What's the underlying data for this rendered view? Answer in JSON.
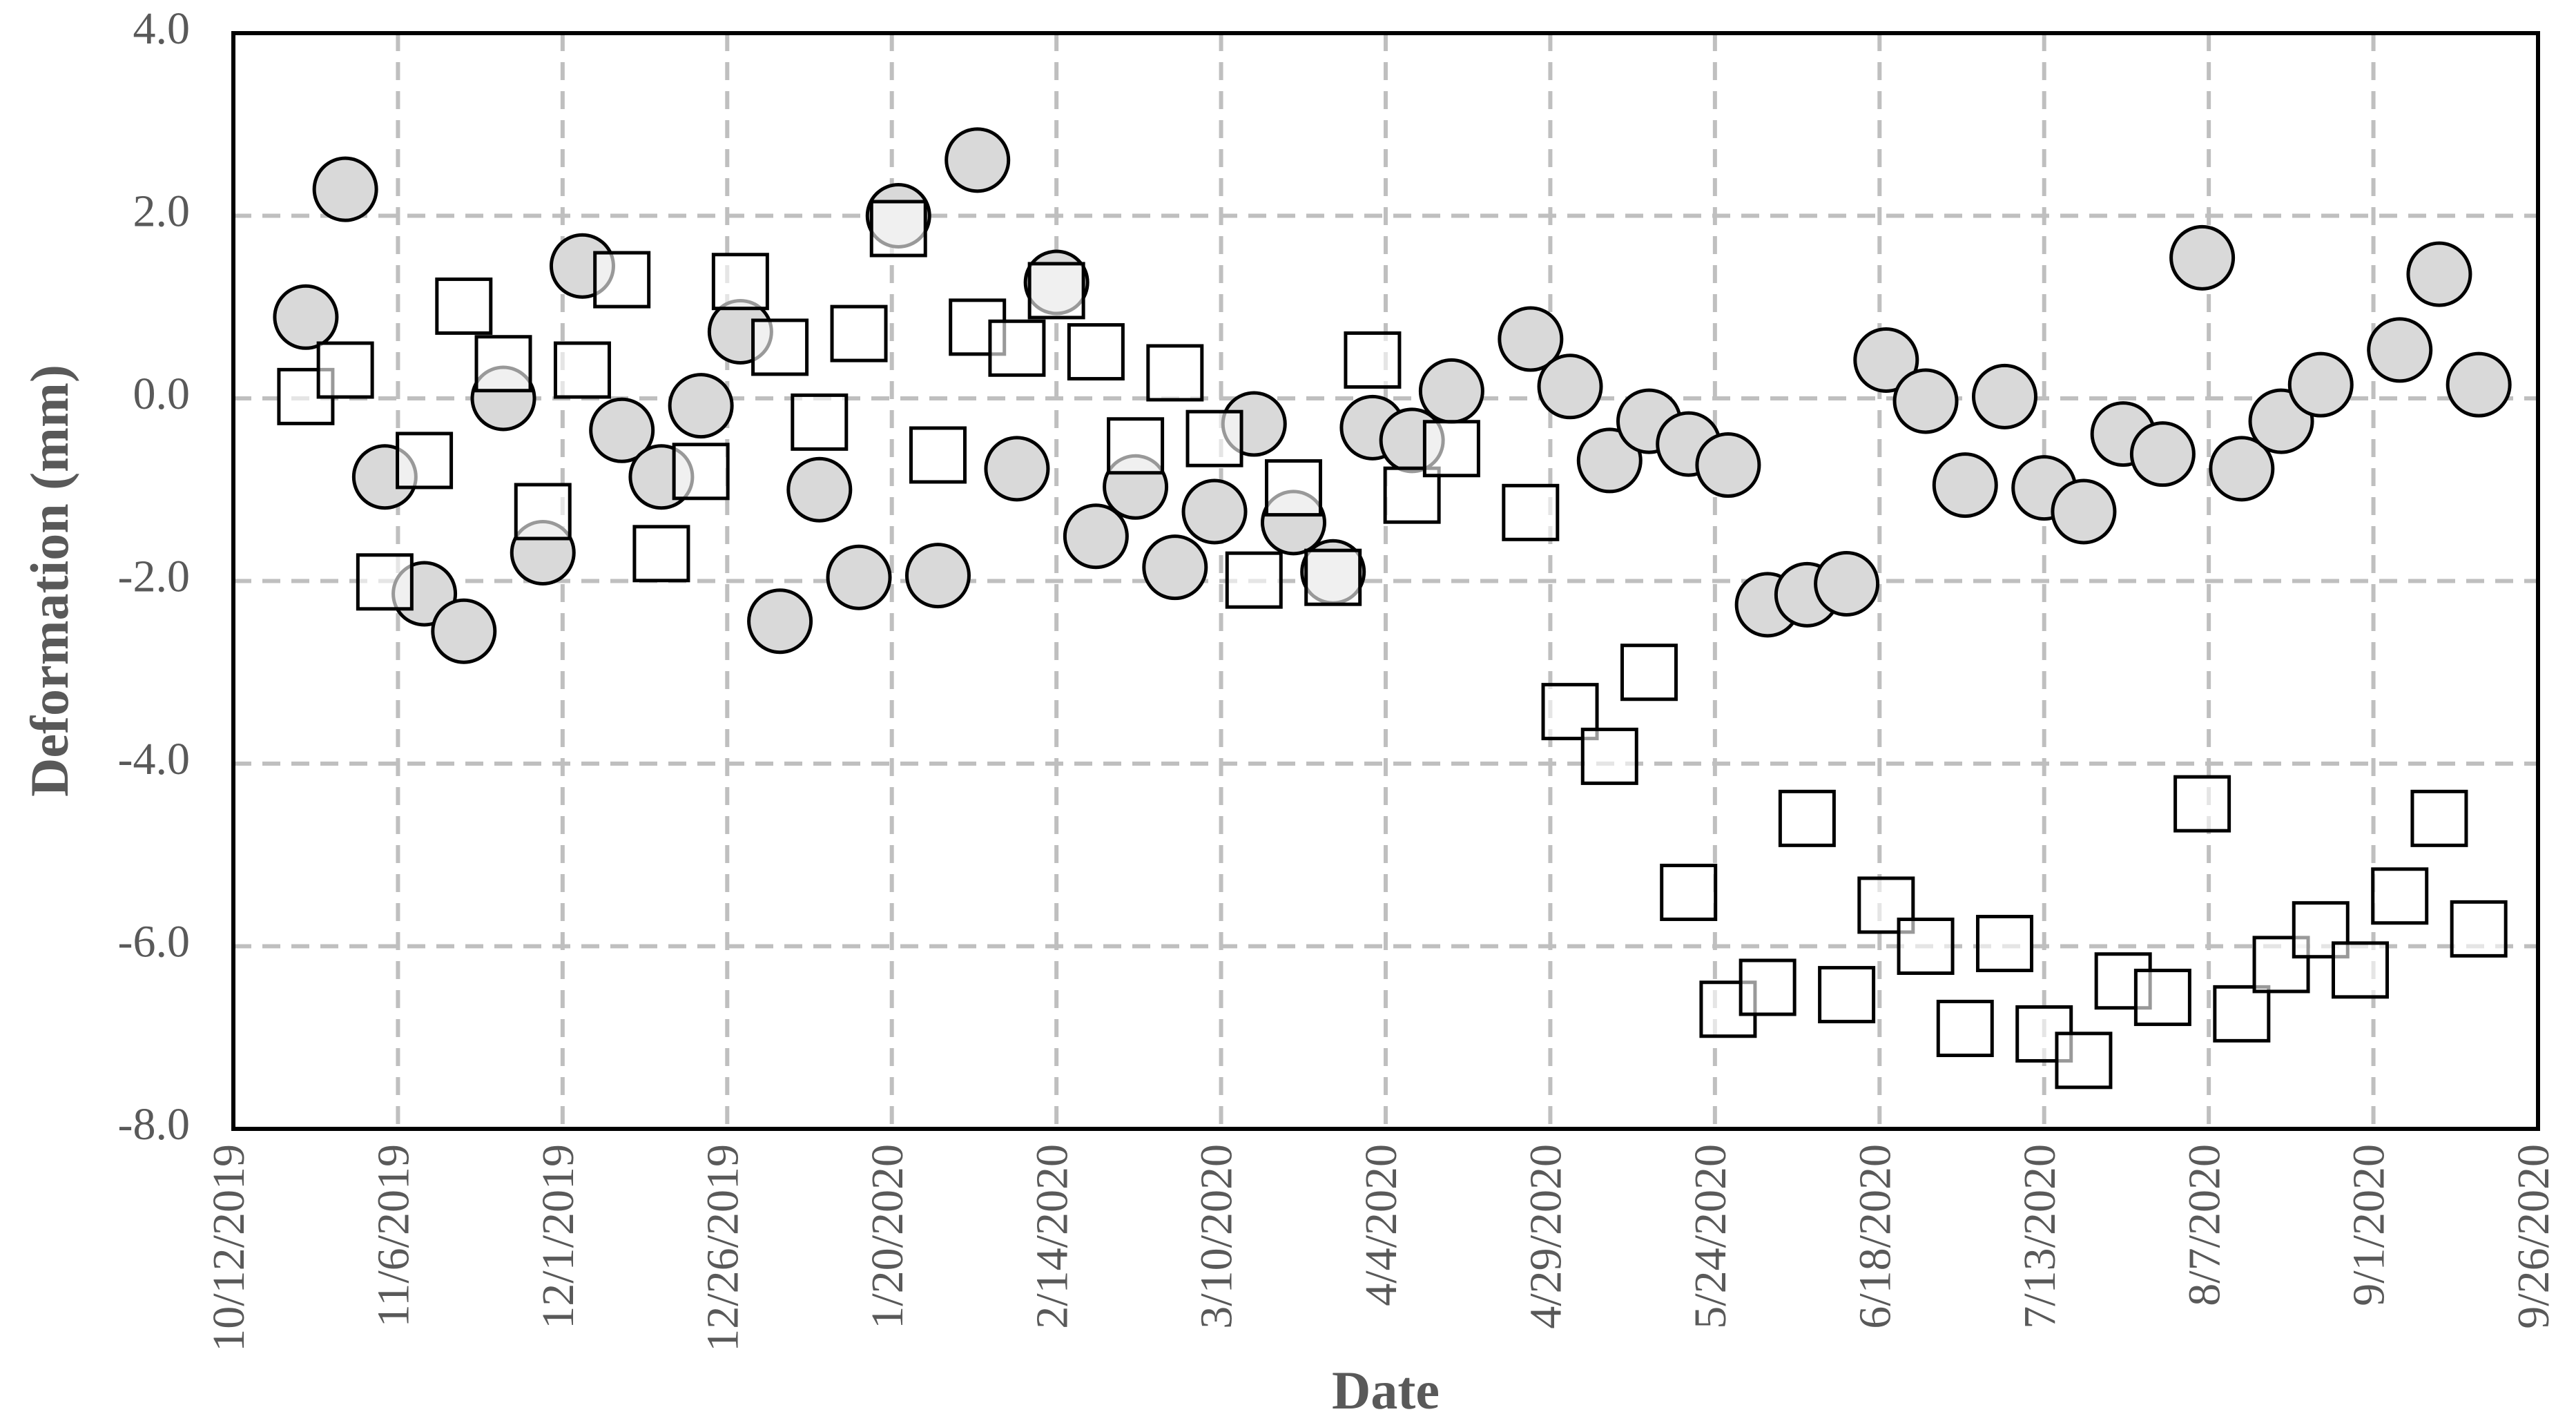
{
  "chart_data": {
    "type": "scatter",
    "x_label": "Date",
    "y_label": "Deformation (mm)",
    "x": [
      "10/23/2019",
      "10/29/2019",
      "11/4/2019",
      "11/10/2019",
      "11/16/2019",
      "11/22/2019",
      "11/28/2019",
      "12/4/2019",
      "12/10/2019",
      "12/16/2019",
      "12/22/2019",
      "12/28/2019",
      "1/3/2020",
      "1/9/2020",
      "1/15/2020",
      "1/21/2020",
      "1/27/2020",
      "2/2/2020",
      "2/8/2020",
      "2/14/2020",
      "2/20/2020",
      "2/26/2020",
      "3/3/2020",
      "3/9/2020",
      "3/15/2020",
      "3/21/2020",
      "3/27/2020",
      "4/2/2020",
      "4/8/2020",
      "4/14/2020",
      "4/26/2020",
      "5/2/2020",
      "5/8/2020",
      "5/14/2020",
      "5/20/2020",
      "5/26/2020",
      "6/1/2020",
      "6/7/2020",
      "6/13/2020",
      "6/19/2020",
      "6/25/2020",
      "7/1/2020",
      "7/7/2020",
      "7/13/2020",
      "7/19/2020",
      "7/25/2020",
      "7/31/2020",
      "8/6/2020",
      "8/12/2020",
      "8/18/2020",
      "8/24/2020",
      "8/30/2020",
      "9/5/2020",
      "9/11/2020",
      "9/17/2020"
    ],
    "series": [
      {
        "color": "#d9d9d9",
        "marker": "circle",
        "values": [
          0.89,
          2.29,
          -0.86,
          -2.14,
          -2.55,
          0.0,
          -1.69,
          1.45,
          -0.35,
          -0.86,
          -0.08,
          0.73,
          -2.44,
          -1.0,
          -1.96,
          2.0,
          -1.94,
          2.61,
          -0.77,
          1.27,
          -1.51,
          -0.97,
          -1.85,
          -1.24,
          -0.28,
          -1.36,
          -1.9,
          -0.32,
          -0.46,
          0.08,
          0.65,
          0.13,
          -0.68,
          -0.25,
          -0.5,
          -0.73,
          -2.26,
          -2.15,
          -2.03,
          0.42,
          -0.03,
          -0.95,
          0.02,
          -0.98,
          -1.24,
          -0.39,
          -0.61,
          1.54,
          -0.77,
          -0.25,
          0.15,
          null,
          0.53,
          1.36,
          0.15
        ]
      },
      {
        "color": "#ffffff",
        "marker": "square",
        "values": [
          0.02,
          0.31,
          -2.01,
          -0.68,
          1.01,
          0.38,
          -1.24,
          0.31,
          1.3,
          -1.7,
          -0.8,
          1.28,
          0.56,
          -0.26,
          0.71,
          1.86,
          -0.62,
          0.78,
          0.55,
          1.18,
          0.51,
          -0.52,
          0.28,
          -0.44,
          -1.99,
          -0.98,
          -1.96,
          0.42,
          -1.06,
          -0.55,
          -1.25,
          -3.43,
          -3.92,
          -3.0,
          -5.41,
          -6.69,
          -6.45,
          -4.6,
          -6.53,
          -5.55,
          -6.0,
          -6.9,
          -5.97,
          -6.96,
          -7.25,
          -6.38,
          -6.56,
          -4.44,
          -6.74,
          -6.2,
          -5.82,
          -6.26,
          -5.45,
          -4.6,
          -5.81
        ]
      }
    ],
    "xlim": [
      "10/12/2019",
      "9/26/2020"
    ],
    "xticks": [
      "10/12/2019",
      "11/6/2019",
      "12/1/2019",
      "12/26/2019",
      "1/20/2020",
      "2/14/2020",
      "3/10/2020",
      "4/4/2020",
      "4/29/2020",
      "5/24/2020",
      "6/18/2020",
      "7/13/2020",
      "8/7/2020",
      "9/1/2020",
      "9/26/2020"
    ],
    "ylim": [
      -8,
      4
    ],
    "yticks": [
      {
        "value": -8,
        "label": "-8.0"
      },
      {
        "value": -6,
        "label": "-6.0"
      },
      {
        "value": -4,
        "label": "-4.0"
      },
      {
        "value": -2,
        "label": "-2.0"
      },
      {
        "value": 0,
        "label": "0.0"
      },
      {
        "value": 2,
        "label": "2.0"
      },
      {
        "value": 4,
        "label": "4.0"
      }
    ],
    "grid": true
  }
}
